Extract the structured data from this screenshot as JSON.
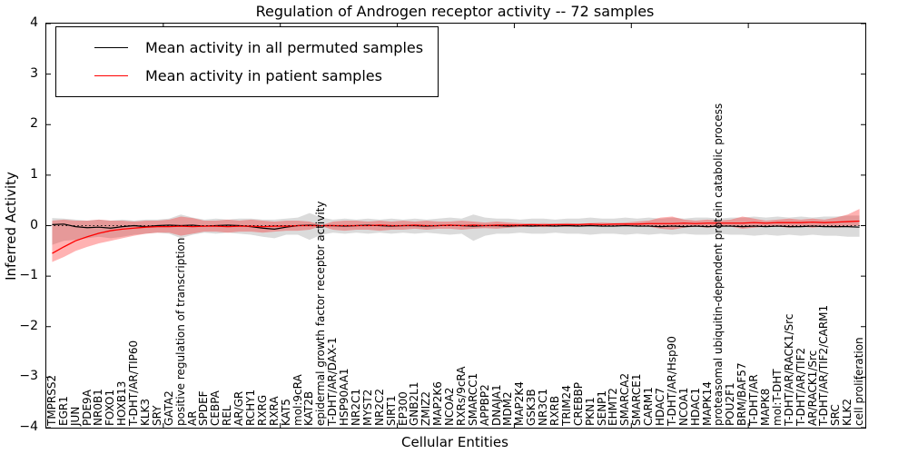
{
  "title": "Regulation of Androgen receptor activity -- 72 samples",
  "axes": {
    "ylabel": "Inferred Activity",
    "xlabel": "Cellular Entities",
    "ytick_labels": [
      "4",
      "3",
      "2",
      "1",
      "0",
      "−1",
      "−2",
      "−3",
      "−4"
    ]
  },
  "legend": {
    "entries": [
      {
        "label": "Mean activity in all permuted samples",
        "color": "#000000"
      },
      {
        "label": "Mean activity in patient samples",
        "color": "#ff0000"
      }
    ]
  },
  "colors": {
    "permuted_line": "#000000",
    "patient_line": "#ff0000",
    "permuted_band": "#999999",
    "patient_band": "#ff0000",
    "zero_line": "#000000"
  },
  "chart_data": {
    "type": "line",
    "title": "Regulation of Androgen receptor activity -- 72 samples",
    "xlabel": "Cellular Entities",
    "ylabel": "Inferred Activity",
    "ylim": [
      -4,
      4
    ],
    "yticks": [
      4,
      3,
      2,
      1,
      0,
      -1,
      -2,
      -3,
      -4
    ],
    "legend_position": "upper left",
    "grid": false,
    "categories": [
      "TMPRSS2",
      "EGR1",
      "JUN",
      "PDE9A",
      "NR0B1",
      "FOXO1",
      "HOXB13",
      "T-DHT/AR/TIP60",
      "KLK3",
      "SRY",
      "GATA2",
      "positive regulation of transcription",
      "AR",
      "SPDEF",
      "CEBPA",
      "REL",
      "AR/GR",
      "RCHY1",
      "RXRG",
      "RXRA",
      "KAT5",
      "mol:9cRA",
      "KAT2B",
      "epidermal growth factor receptor activity",
      "T-DHT/AR/DAX-1",
      "HSP90AA1",
      "NR2C1",
      "MYST2",
      "NR2C2",
      "SIRT1",
      "EP300",
      "GNB2L1",
      "ZMIZ2",
      "MAP2K6",
      "NCOA2",
      "RXRs/9cRA",
      "SMARCC1",
      "APPBP2",
      "DNAJA1",
      "MDM2",
      "MAP2K4",
      "GSK3B",
      "NR3C1",
      "RXRB",
      "TRIM24",
      "CREBBP",
      "PKN1",
      "SENP1",
      "EHMT2",
      "SMARCA2",
      "SMARCE1",
      "CARM1",
      "HDAC7",
      "T-DHT/AR/Hsp90",
      "NCOA1",
      "HDAC1",
      "MAPK14",
      "proteasomal ubiquitin-dependent protein catabolic process",
      "POU2F1",
      "BRM/BAF57",
      "T-DHT/AR",
      "MAPK8",
      "mol:T-DHT",
      "T-DHT/AR/RACK1/Src",
      "T-DHT/AR/TIF2",
      "AR/RACK1/Src",
      "T-DHT/AR/TIF2/CARM1",
      "SRC",
      "KLK2",
      "cell proliferation"
    ],
    "series": [
      {
        "name": "Mean activity in all permuted samples",
        "color": "#000000",
        "values": [
          0.02,
          0.03,
          -0.02,
          -0.04,
          -0.03,
          -0.05,
          -0.02,
          0.0,
          -0.02,
          0.0,
          0.01,
          0.0,
          0.01,
          -0.01,
          0.0,
          0.01,
          0.0,
          -0.02,
          -0.05,
          -0.07,
          -0.03,
          0.0,
          0.01,
          0.0,
          0.0,
          -0.01,
          0.0,
          0.01,
          0.0,
          -0.01,
          0.0,
          0.0,
          -0.01,
          0.0,
          0.01,
          0.0,
          -0.01,
          0.0,
          0.0,
          -0.01,
          0.0,
          -0.01,
          0.0,
          -0.01,
          0.0,
          -0.01,
          0.0,
          -0.01,
          -0.01,
          0.0,
          -0.01,
          -0.01,
          -0.02,
          -0.01,
          -0.02,
          -0.01,
          -0.02,
          -0.01,
          -0.01,
          -0.02,
          -0.01,
          -0.02,
          -0.01,
          -0.02,
          -0.02,
          -0.01,
          -0.02,
          -0.02,
          -0.02,
          -0.03
        ]
      },
      {
        "name": "Mean activity in patient samples",
        "color": "#ff0000",
        "values": [
          -0.55,
          -0.42,
          -0.3,
          -0.22,
          -0.15,
          -0.1,
          -0.07,
          -0.05,
          -0.03,
          -0.02,
          -0.02,
          -0.01,
          -0.02,
          -0.01,
          -0.01,
          -0.02,
          -0.01,
          -0.01,
          -0.02,
          -0.01,
          -0.01,
          0.0,
          0.0,
          0.0,
          0.0,
          0.0,
          0.0,
          0.0,
          0.01,
          0.0,
          0.0,
          0.01,
          0.0,
          0.0,
          0.01,
          0.0,
          0.01,
          0.0,
          0.01,
          0.01,
          0.01,
          0.02,
          0.01,
          0.02,
          0.02,
          0.02,
          0.03,
          0.02,
          0.03,
          0.03,
          0.03,
          0.04,
          0.04,
          0.04,
          0.05,
          0.04,
          0.05,
          0.05,
          0.05,
          0.05,
          0.06,
          0.05,
          0.06,
          0.06,
          0.06,
          0.07,
          0.06,
          0.07,
          0.08,
          0.09
        ]
      }
    ],
    "bands": [
      {
        "name": "permuted band",
        "color": "#999999",
        "opacity": 0.35,
        "upper": [
          0.15,
          0.14,
          0.12,
          0.1,
          0.12,
          0.1,
          0.12,
          0.1,
          0.12,
          0.12,
          0.14,
          0.22,
          0.16,
          0.12,
          0.14,
          0.12,
          0.14,
          0.14,
          0.12,
          0.12,
          0.14,
          0.16,
          0.25,
          0.16,
          0.12,
          0.14,
          0.12,
          0.14,
          0.12,
          0.14,
          0.12,
          0.14,
          0.12,
          0.14,
          0.16,
          0.14,
          0.22,
          0.16,
          0.14,
          0.14,
          0.12,
          0.14,
          0.14,
          0.12,
          0.14,
          0.14,
          0.16,
          0.14,
          0.14,
          0.16,
          0.14,
          0.16,
          0.14,
          0.16,
          0.14,
          0.16,
          0.16,
          0.14,
          0.16,
          0.16,
          0.18,
          0.16,
          0.18,
          0.16,
          0.18,
          0.16,
          0.18,
          0.18,
          0.2,
          0.2
        ],
        "lower": [
          -0.38,
          -0.3,
          -0.28,
          -0.25,
          -0.22,
          -0.25,
          -0.22,
          -0.18,
          -0.16,
          -0.14,
          -0.16,
          -0.25,
          -0.18,
          -0.14,
          -0.16,
          -0.14,
          -0.16,
          -0.18,
          -0.22,
          -0.25,
          -0.18,
          -0.18,
          -0.28,
          -0.18,
          -0.14,
          -0.16,
          -0.14,
          -0.16,
          -0.14,
          -0.16,
          -0.14,
          -0.16,
          -0.14,
          -0.16,
          -0.18,
          -0.16,
          -0.3,
          -0.2,
          -0.16,
          -0.16,
          -0.14,
          -0.16,
          -0.16,
          -0.14,
          -0.16,
          -0.16,
          -0.18,
          -0.16,
          -0.16,
          -0.18,
          -0.16,
          -0.18,
          -0.16,
          -0.18,
          -0.16,
          -0.18,
          -0.18,
          -0.16,
          -0.18,
          -0.18,
          -0.2,
          -0.18,
          -0.2,
          -0.18,
          -0.2,
          -0.18,
          -0.2,
          -0.2,
          -0.22,
          -0.22
        ]
      },
      {
        "name": "patient band",
        "color": "#ff0000",
        "opacity": 0.3,
        "upper": [
          0.1,
          0.12,
          0.1,
          0.1,
          0.12,
          0.1,
          0.1,
          0.08,
          0.1,
          0.1,
          0.12,
          0.18,
          0.15,
          0.1,
          0.1,
          0.12,
          0.1,
          0.12,
          0.1,
          0.08,
          0.1,
          0.1,
          0.08,
          0.01,
          0.08,
          0.1,
          0.1,
          0.08,
          0.1,
          0.08,
          0.1,
          0.08,
          0.1,
          0.08,
          0.08,
          0.1,
          0.08,
          0.06,
          0.08,
          0.06,
          0.05,
          0.04,
          0.05,
          0.04,
          0.05,
          0.04,
          0.05,
          0.06,
          0.05,
          0.06,
          0.08,
          0.1,
          0.16,
          0.18,
          0.12,
          0.1,
          0.12,
          0.1,
          0.12,
          0.18,
          0.14,
          0.1,
          0.12,
          0.14,
          0.12,
          0.14,
          0.12,
          0.16,
          0.22,
          0.33
        ],
        "lower": [
          -0.72,
          -0.62,
          -0.5,
          -0.42,
          -0.35,
          -0.3,
          -0.25,
          -0.2,
          -0.16,
          -0.14,
          -0.14,
          -0.2,
          -0.16,
          -0.12,
          -0.12,
          -0.14,
          -0.12,
          -0.12,
          -0.14,
          -0.12,
          -0.1,
          -0.1,
          -0.08,
          -0.01,
          -0.08,
          -0.1,
          -0.08,
          -0.08,
          -0.1,
          -0.08,
          -0.08,
          -0.06,
          -0.08,
          -0.06,
          -0.06,
          -0.08,
          -0.06,
          -0.05,
          -0.06,
          -0.04,
          -0.03,
          -0.02,
          -0.03,
          -0.02,
          -0.02,
          -0.02,
          -0.01,
          -0.02,
          -0.01,
          -0.01,
          -0.02,
          -0.02,
          -0.06,
          -0.08,
          -0.04,
          -0.02,
          -0.04,
          -0.02,
          -0.02,
          -0.06,
          -0.04,
          -0.02,
          -0.02,
          -0.04,
          -0.02,
          -0.04,
          -0.02,
          -0.04,
          -0.02,
          0.0
        ],
        "zero_line_style": "dotted"
      }
    ]
  }
}
